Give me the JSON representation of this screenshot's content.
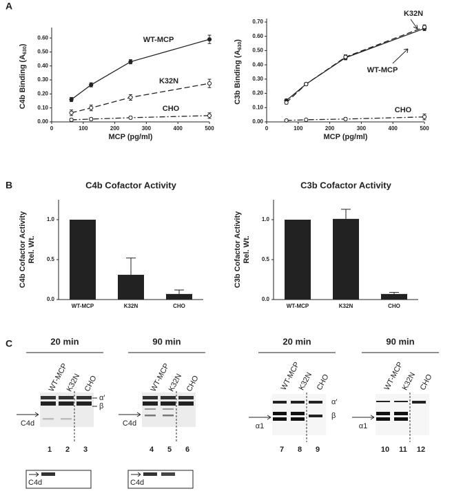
{
  "panel_labels": [
    "A",
    "B",
    "C"
  ],
  "chart_data": [
    {
      "type": "line",
      "y_label": "C4b Binding (A",
      "y_label_sub": "630",
      "y_label_end": ")",
      "x_label": "MCP (pg/ml)",
      "x": [
        62.5,
        125,
        250,
        500
      ],
      "xlim": [
        0,
        500
      ],
      "xticks": [
        0,
        100,
        200,
        300,
        400,
        500
      ],
      "ylim": [
        0,
        0.65
      ],
      "yticks": [
        {
          "value": 0,
          "label": "0.00"
        },
        {
          "value": 0.1,
          "label": "0.10"
        },
        {
          "value": 0.2,
          "label": "0.20"
        },
        {
          "value": 0.3,
          "label": "0.30"
        },
        {
          "value": 0.4,
          "label": "0.40"
        },
        {
          "value": 0.5,
          "label": "0.50"
        },
        {
          "value": 0.6,
          "label": "0.60"
        }
      ],
      "series": [
        {
          "name": "WT-MCP",
          "color": "#222222",
          "style": "solid",
          "marker": "filled",
          "values": [
            0.16,
            0.265,
            0.43,
            0.59
          ],
          "errors": [
            0.015,
            0.015,
            0.015,
            0.03
          ]
        },
        {
          "name": "K32N",
          "color": "#222222",
          "style": "dashed",
          "marker": "open",
          "values": [
            0.065,
            0.1,
            0.175,
            0.275
          ],
          "errors": [
            0.02,
            0.02,
            0.02,
            0.03
          ]
        },
        {
          "name": "CHO",
          "color": "#222222",
          "style": "dashdot",
          "marker": "open",
          "values": [
            0.015,
            0.02,
            0.03,
            0.045
          ],
          "errors": [
            0.01,
            0.01,
            0.01,
            0.02
          ]
        }
      ]
    },
    {
      "type": "line",
      "y_label": "C3b Binding (A",
      "y_label_sub": "630",
      "y_label_end": ")",
      "x_label": "MCP (pg/ml)",
      "x": [
        62.5,
        125,
        250,
        500
      ],
      "xlim": [
        0,
        500
      ],
      "xticks": [
        0,
        100,
        200,
        300,
        400,
        500
      ],
      "ylim": [
        0,
        0.7
      ],
      "yticks": [
        {
          "value": 0,
          "label": "0.00"
        },
        {
          "value": 0.1,
          "label": "0.10"
        },
        {
          "value": 0.2,
          "label": "0.20"
        },
        {
          "value": 0.3,
          "label": "0.30"
        },
        {
          "value": 0.4,
          "label": "0.40"
        },
        {
          "value": 0.5,
          "label": "0.50"
        },
        {
          "value": 0.6,
          "label": "0.60"
        },
        {
          "value": 0.7,
          "label": "0.70"
        }
      ],
      "series": [
        {
          "name": "WT-MCP",
          "color": "#222222",
          "style": "solid",
          "marker": "filled",
          "values": [
            0.15,
            0.265,
            0.45,
            0.655
          ],
          "errors": [
            0.01,
            0.01,
            0.015,
            0.015
          ]
        },
        {
          "name": "K32N",
          "color": "#222222",
          "style": "dashed",
          "marker": "open",
          "values": [
            0.135,
            0.265,
            0.455,
            0.665
          ],
          "errors": [
            0.01,
            0.01,
            0.015,
            0.015
          ]
        },
        {
          "name": "CHO",
          "color": "#222222",
          "style": "dashdot",
          "marker": "open",
          "values": [
            0.01,
            0.015,
            0.02,
            0.035
          ],
          "errors": [
            0.005,
            0.005,
            0.01,
            0.02
          ]
        }
      ]
    },
    {
      "type": "bar",
      "title": "C4b Cofactor Activity",
      "y_label": "C4b Cofactor Activity",
      "y_label2": "Rel. Wt.",
      "categories": [
        "WT-MCP",
        "K32N",
        "CHO"
      ],
      "values": [
        1.0,
        0.31,
        0.07
      ],
      "errors": [
        0,
        0.21,
        0.05
      ],
      "color": "#222222",
      "ylim": [
        0,
        1.25
      ],
      "yticks": [
        {
          "value": 0,
          "label": "0.0"
        },
        {
          "value": 0.5,
          "label": "0.5"
        },
        {
          "value": 1,
          "label": "1.0"
        }
      ]
    },
    {
      "type": "bar",
      "title": "C3b Cofactor Activity",
      "y_label": "C3b Cofactor Activity",
      "y_label2": "Rel. Wt.",
      "categories": [
        "WT-MCP",
        "K32N",
        "CHO"
      ],
      "values": [
        1.0,
        1.01,
        0.07
      ],
      "errors": [
        0,
        0.12,
        0.02
      ],
      "color": "#222222",
      "ylim": [
        0,
        1.25
      ],
      "yticks": [
        {
          "value": 0,
          "label": "0.0"
        },
        {
          "value": 0.5,
          "label": "0.5"
        },
        {
          "value": 1,
          "label": "1.0"
        }
      ]
    }
  ],
  "gels": [
    {
      "time": "20 min",
      "lanes": [
        "WT-MCP",
        "K32N",
        "CHO"
      ],
      "numbers": [
        1,
        2,
        3
      ],
      "bands": [
        "α′",
        "β"
      ],
      "arrow": "C4d",
      "inset": "C4d"
    },
    {
      "time": "90 min",
      "lanes": [
        "WT-MCP",
        "K32N",
        "CHO"
      ],
      "numbers": [
        4,
        5,
        6
      ],
      "arrow": "C4d",
      "inset": "C4d"
    },
    {
      "time": "20 min",
      "lanes": [
        "WT-MCP",
        "K32N",
        "CHO"
      ],
      "numbers": [
        7,
        8,
        9
      ],
      "bands": [
        "α′",
        "β"
      ],
      "arrow": "α1"
    },
    {
      "time": "90 min",
      "lanes": [
        "WT-MCP",
        "K32N",
        "CHO"
      ],
      "numbers": [
        10,
        11,
        12
      ],
      "arrow": "α1"
    }
  ]
}
